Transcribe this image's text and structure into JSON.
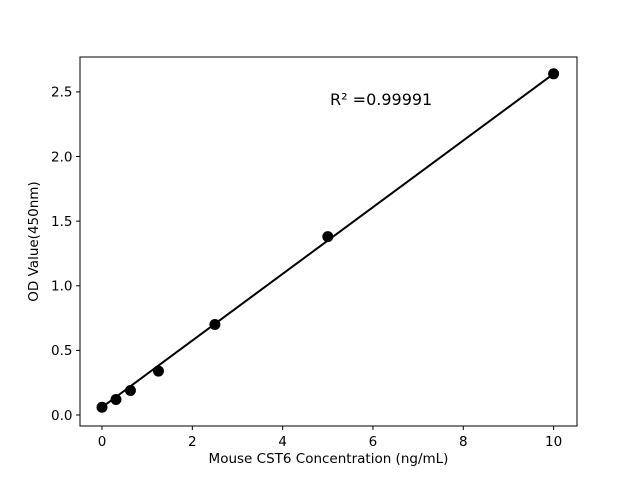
{
  "figure": {
    "background_color": "#ffffff"
  },
  "chart_data": {
    "type": "scatter",
    "title": "",
    "xlabel": "Mouse CST6 Concentration (ng/mL)",
    "ylabel": "OD Value(450nm)",
    "annotation": {
      "text": "R² =0.99991",
      "x": 5.05,
      "y": 2.4
    },
    "r_squared": 0.99991,
    "points": [
      {
        "x": 0,
        "y": 0.06
      },
      {
        "x": 0.31,
        "y": 0.12
      },
      {
        "x": 0.63,
        "y": 0.19
      },
      {
        "x": 1.25,
        "y": 0.34
      },
      {
        "x": 2.5,
        "y": 0.7
      },
      {
        "x": 5,
        "y": 1.38
      },
      {
        "x": 10,
        "y": 2.64
      }
    ],
    "trendline": {
      "x1": 0,
      "y1": 0.06,
      "x2": 10,
      "y2": 2.64
    },
    "x_ticks": [
      {
        "value": 0,
        "label": "0"
      },
      {
        "value": 2,
        "label": "2"
      },
      {
        "value": 4,
        "label": "4"
      },
      {
        "value": 6,
        "label": "6"
      },
      {
        "value": 8,
        "label": "8"
      },
      {
        "value": 10,
        "label": "10"
      }
    ],
    "y_ticks": [
      {
        "value": 0.0,
        "label": "0.0"
      },
      {
        "value": 0.5,
        "label": "0.5"
      },
      {
        "value": 1.0,
        "label": "1.0"
      },
      {
        "value": 1.5,
        "label": "1.5"
      },
      {
        "value": 2.0,
        "label": "2.0"
      },
      {
        "value": 2.5,
        "label": "2.5"
      }
    ],
    "xlim": [
      -0.487,
      10.518
    ],
    "ylim": [
      -0.085,
      2.77
    ],
    "grid": false,
    "legend": null,
    "colors": {
      "marker": "#000000",
      "line": "#000000",
      "spine": "#000000",
      "text": "#000000",
      "background": "#ffffff"
    }
  }
}
